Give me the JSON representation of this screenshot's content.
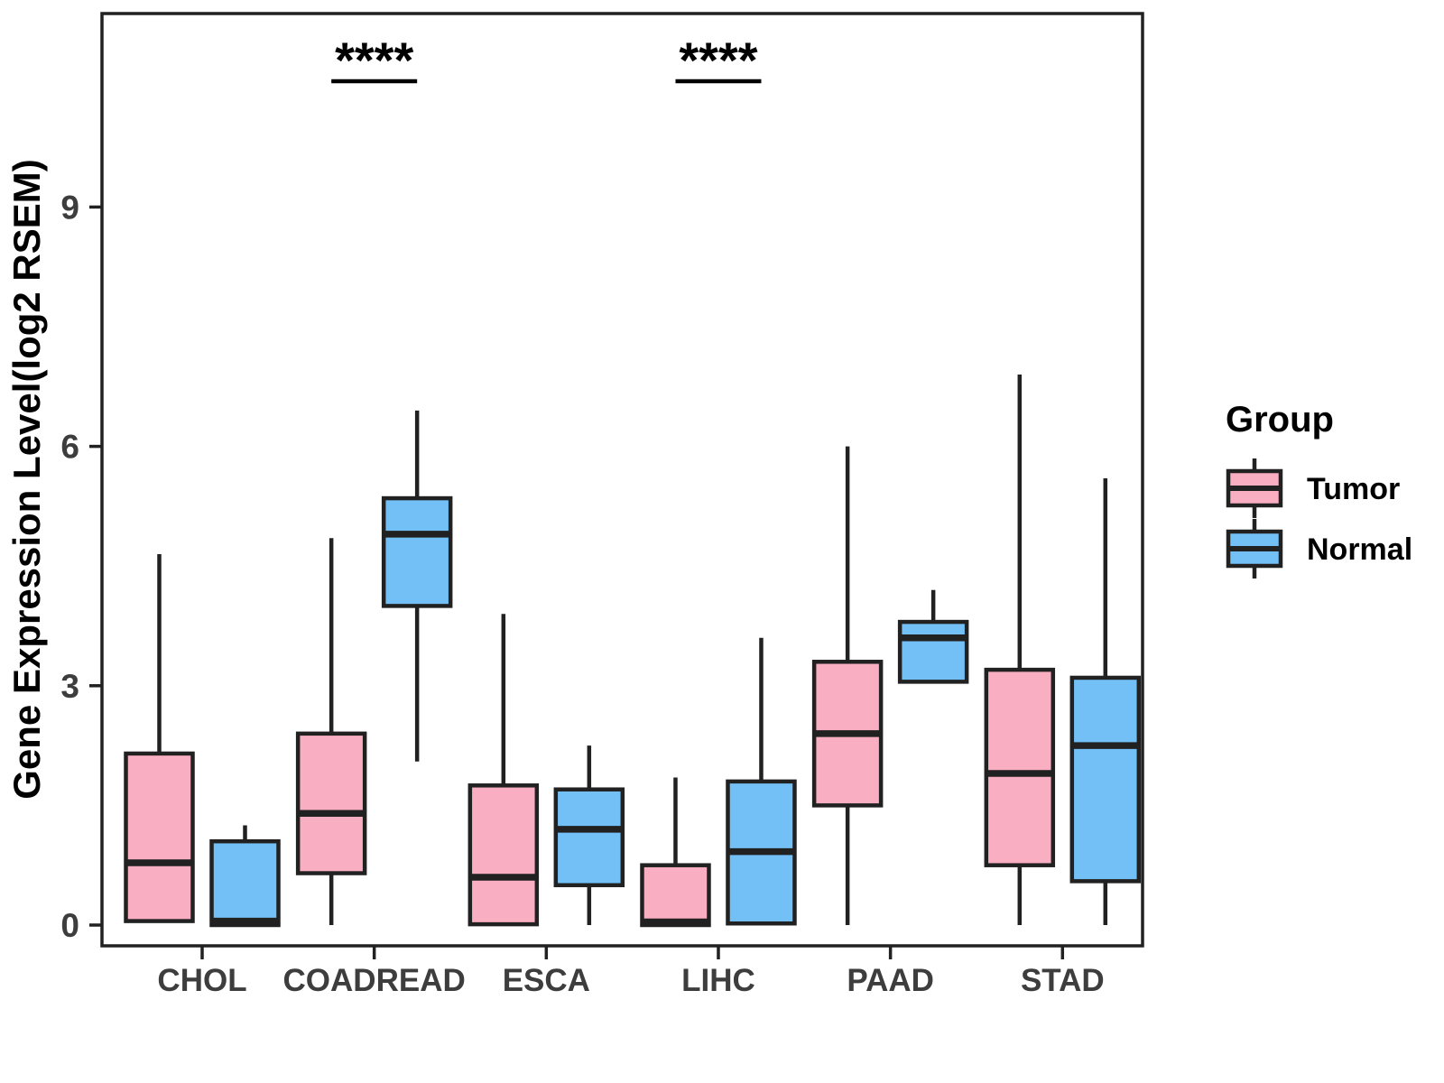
{
  "figure": {
    "background": "#ffffff"
  },
  "chart_data": {
    "type": "boxplot",
    "title": "",
    "xlabel": "",
    "ylabel": "Gene Expression Level(log2 RSEM)",
    "categories": [
      "CHOL",
      "COADREAD",
      "ESCA",
      "LIHC",
      "PAAD",
      "STAD"
    ],
    "yticks": [
      0,
      3,
      6,
      9
    ],
    "ylim": [
      -0.3,
      11.4
    ],
    "grid": "off",
    "panel_border": "on",
    "legend_title": "Group",
    "legend_position": "right",
    "colors": {
      "tumor_fill": "#F9AEC1",
      "normal_fill": "#72C0F6",
      "box_stroke": "#212121",
      "axis_text": "#3D3D3D",
      "axis_title": "#000000"
    },
    "series": [
      {
        "name": "Tumor",
        "color": "#F9AEC1",
        "boxes": [
          {
            "category": "CHOL",
            "min": 0.05,
            "q1": 0.05,
            "median": 0.78,
            "q3": 2.15,
            "max": 4.65
          },
          {
            "category": "COADREAD",
            "min": 0.0,
            "q1": 0.65,
            "median": 1.4,
            "q3": 2.4,
            "max": 4.85
          },
          {
            "category": "ESCA",
            "min": 0.01,
            "q1": 0.01,
            "median": 0.6,
            "q3": 1.75,
            "max": 3.9
          },
          {
            "category": "LIHC",
            "min": 0.0,
            "q1": 0.0,
            "median": 0.04,
            "q3": 0.75,
            "max": 1.85
          },
          {
            "category": "PAAD",
            "min": 0.0,
            "q1": 1.5,
            "median": 2.4,
            "q3": 3.3,
            "max": 6.0
          },
          {
            "category": "STAD",
            "min": 0.0,
            "q1": 0.75,
            "median": 1.9,
            "q3": 3.2,
            "max": 6.9
          }
        ]
      },
      {
        "name": "Normal",
        "color": "#72C0F6",
        "boxes": [
          {
            "category": "CHOL",
            "min": 0.0,
            "q1": 0.0,
            "median": 0.05,
            "q3": 1.05,
            "max": 1.25
          },
          {
            "category": "COADREAD",
            "min": 2.05,
            "q1": 4.0,
            "median": 4.9,
            "q3": 5.35,
            "max": 6.45
          },
          {
            "category": "ESCA",
            "min": 0.0,
            "q1": 0.5,
            "median": 1.2,
            "q3": 1.7,
            "max": 2.25
          },
          {
            "category": "LIHC",
            "min": 0.0,
            "q1": 0.02,
            "median": 0.92,
            "q3": 1.8,
            "max": 3.6
          },
          {
            "category": "PAAD",
            "min": 3.05,
            "q1": 3.05,
            "median": 3.6,
            "q3": 3.8,
            "max": 4.2
          },
          {
            "category": "STAD",
            "min": 0.0,
            "q1": 0.55,
            "median": 2.25,
            "q3": 3.1,
            "max": 5.6
          }
        ]
      }
    ],
    "annotations": [
      {
        "category": "COADREAD",
        "label": "****"
      },
      {
        "category": "LIHC",
        "label": "****"
      }
    ]
  }
}
